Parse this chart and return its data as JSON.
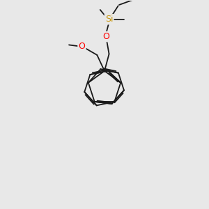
{
  "bg_color": "#e8e8e8",
  "bond_color": "#1a1a1a",
  "oxygen_color": "#ff0000",
  "silicon_color": "#c8960c",
  "lw": 1.3,
  "dbl_off": 0.06,
  "figsize": [
    3.0,
    3.0
  ],
  "dpi": 100,
  "xlim": [
    0,
    10
  ],
  "ylim": [
    0,
    10
  ]
}
